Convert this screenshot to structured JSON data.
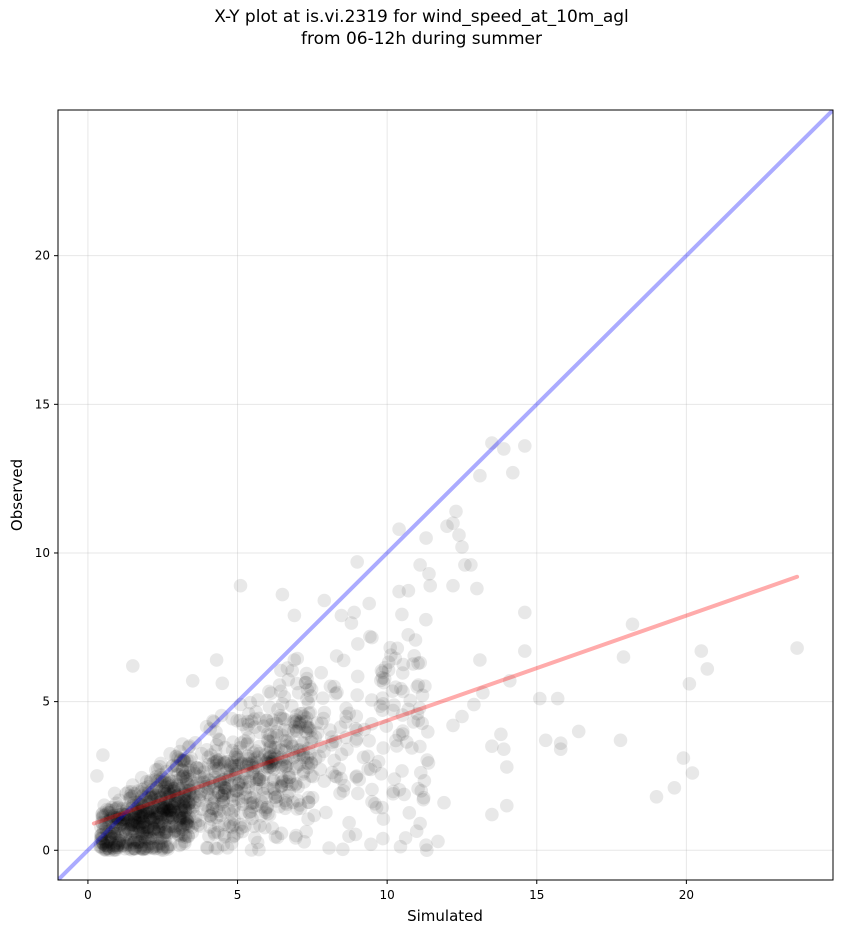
{
  "chart_data": {
    "type": "scatter",
    "title_lines": [
      "X-Y plot at is.vi.2319 for wind_speed_at_10m_agl",
      "from 06-12h during summer"
    ],
    "xlabel": "Simulated",
    "ylabel": "Observed",
    "xlim": [
      -1,
      24.9
    ],
    "ylim": [
      -1,
      24.9
    ],
    "xticks": [
      0,
      5,
      10,
      15,
      20
    ],
    "yticks": [
      0,
      5,
      10,
      15,
      20
    ],
    "grid": true,
    "colors": {
      "points": "#000000",
      "identity_line": "#0000ff",
      "fit_line": "#ff0000"
    },
    "identity_line": {
      "x": [
        -1,
        24.9
      ],
      "y": [
        -1,
        24.9
      ]
    },
    "fit_line": {
      "x": [
        0.2,
        23.7
      ],
      "y": [
        0.9,
        9.2
      ]
    },
    "outlier_points": [
      [
        13.5,
        13.7
      ],
      [
        14.6,
        13.6
      ],
      [
        13.9,
        13.5
      ],
      [
        14.2,
        12.7
      ],
      [
        13.1,
        12.6
      ],
      [
        12.3,
        11.4
      ],
      [
        12.2,
        11.0
      ],
      [
        12.0,
        10.9
      ],
      [
        10.4,
        10.8
      ],
      [
        12.4,
        10.6
      ],
      [
        11.3,
        10.5
      ],
      [
        12.5,
        10.2
      ],
      [
        9.0,
        9.7
      ],
      [
        11.1,
        9.6
      ],
      [
        12.6,
        9.6
      ],
      [
        12.8,
        9.6
      ],
      [
        11.4,
        9.3
      ],
      [
        13.0,
        8.8
      ],
      [
        12.2,
        8.9
      ],
      [
        10.4,
        8.7
      ],
      [
        14.6,
        8.0
      ],
      [
        18.2,
        7.6
      ],
      [
        20.5,
        6.7
      ],
      [
        23.7,
        6.8
      ],
      [
        20.7,
        6.1
      ],
      [
        17.9,
        6.5
      ],
      [
        20.1,
        5.6
      ],
      [
        14.6,
        6.7
      ],
      [
        14.1,
        5.7
      ],
      [
        15.1,
        5.1
      ],
      [
        15.7,
        5.1
      ],
      [
        16.4,
        4.0
      ],
      [
        15.3,
        3.7
      ],
      [
        15.8,
        3.6
      ],
      [
        17.8,
        3.7
      ],
      [
        15.8,
        3.4
      ],
      [
        13.8,
        3.9
      ],
      [
        13.9,
        3.4
      ],
      [
        13.5,
        3.5
      ],
      [
        14.0,
        2.8
      ],
      [
        19.9,
        3.1
      ],
      [
        20.2,
        2.6
      ],
      [
        19.6,
        2.1
      ],
      [
        19.0,
        1.8
      ],
      [
        14.0,
        1.5
      ],
      [
        13.5,
        1.2
      ],
      [
        11.9,
        1.6
      ],
      [
        11.7,
        0.3
      ],
      [
        5.1,
        8.9
      ],
      [
        6.5,
        8.6
      ],
      [
        7.9,
        8.4
      ],
      [
        9.4,
        8.3
      ],
      [
        8.9,
        8.0
      ],
      [
        6.9,
        7.9
      ],
      [
        4.3,
        6.4
      ],
      [
        3.5,
        5.7
      ],
      [
        1.5,
        6.2
      ],
      [
        0.3,
        2.5
      ],
      [
        0.5,
        3.2
      ],
      [
        13.1,
        6.4
      ],
      [
        12.5,
        4.5
      ],
      [
        12.2,
        4.2
      ],
      [
        13.2,
        5.3
      ],
      [
        12.9,
        4.9
      ],
      [
        10.2,
        4.7
      ],
      [
        11.1,
        0.9
      ]
    ],
    "dense_cloud": {
      "description_x_range": [
        0.2,
        12.5
      ],
      "description_y_range": [
        0,
        9
      ],
      "point_count": 1300
    }
  }
}
